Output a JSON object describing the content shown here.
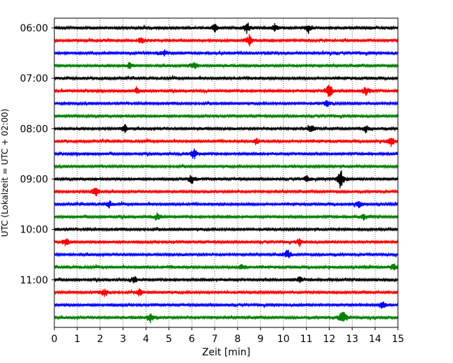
{
  "chart_data": {
    "type": "line",
    "title": "",
    "xlabel": "Zeit  [min]",
    "ylabel": "UTC (Lokalzeit = UTC + 02:00)",
    "xlim": [
      0,
      15
    ],
    "x_ticks": [
      0,
      1,
      2,
      3,
      4,
      5,
      6,
      7,
      8,
      9,
      10,
      11,
      12,
      13,
      14,
      15
    ],
    "y_tick_labels": [
      "06:00",
      "07:00",
      "08:00",
      "09:00",
      "10:00",
      "11:00"
    ],
    "grid": "vertical dotted",
    "row_minutes": 15,
    "trace_colors": [
      "#000000",
      "#ff0000",
      "#0000ff",
      "#008000"
    ],
    "trace_start_times": [
      "06:00",
      "06:15",
      "06:30",
      "06:45",
      "07:00",
      "07:15",
      "07:30",
      "07:45",
      "08:00",
      "08:15",
      "08:30",
      "08:45",
      "09:00",
      "09:15",
      "09:30",
      "09:45",
      "10:00",
      "10:15",
      "10:30",
      "10:45",
      "11:00",
      "11:15",
      "11:30",
      "11:45"
    ],
    "events": [
      {
        "row": 0,
        "x": 7.0,
        "amp": 0.4
      },
      {
        "row": 0,
        "x": 8.4,
        "amp": 0.45
      },
      {
        "row": 0,
        "x": 9.6,
        "amp": 0.4
      },
      {
        "row": 0,
        "x": 11.1,
        "amp": 0.45
      },
      {
        "row": 1,
        "x": 3.8,
        "amp": 0.35
      },
      {
        "row": 1,
        "x": 8.5,
        "amp": 0.55
      },
      {
        "row": 2,
        "x": 4.8,
        "amp": 0.3
      },
      {
        "row": 3,
        "x": 3.3,
        "amp": 0.3
      },
      {
        "row": 3,
        "x": 6.1,
        "amp": 0.3
      },
      {
        "row": 5,
        "x": 12.0,
        "amp": 0.75
      },
      {
        "row": 5,
        "x": 13.6,
        "amp": 0.4
      },
      {
        "row": 5,
        "x": 3.6,
        "amp": 0.3
      },
      {
        "row": 6,
        "x": 11.9,
        "amp": 0.35
      },
      {
        "row": 8,
        "x": 3.1,
        "amp": 0.4
      },
      {
        "row": 8,
        "x": 11.2,
        "amp": 0.4
      },
      {
        "row": 8,
        "x": 13.6,
        "amp": 0.35
      },
      {
        "row": 9,
        "x": 8.8,
        "amp": 0.35
      },
      {
        "row": 9,
        "x": 14.7,
        "amp": 0.45
      },
      {
        "row": 10,
        "x": 6.1,
        "amp": 0.6
      },
      {
        "row": 12,
        "x": 6.0,
        "amp": 0.45
      },
      {
        "row": 12,
        "x": 12.5,
        "amp": 0.95
      },
      {
        "row": 12,
        "x": 11.0,
        "amp": 0.3
      },
      {
        "row": 13,
        "x": 1.8,
        "amp": 0.45
      },
      {
        "row": 14,
        "x": 2.4,
        "amp": 0.3
      },
      {
        "row": 14,
        "x": 13.3,
        "amp": 0.3
      },
      {
        "row": 15,
        "x": 4.5,
        "amp": 0.3
      },
      {
        "row": 15,
        "x": 13.5,
        "amp": 0.3
      },
      {
        "row": 17,
        "x": 0.5,
        "amp": 0.4
      },
      {
        "row": 17,
        "x": 10.7,
        "amp": 0.3
      },
      {
        "row": 18,
        "x": 10.2,
        "amp": 0.45
      },
      {
        "row": 19,
        "x": 8.2,
        "amp": 0.3
      },
      {
        "row": 19,
        "x": 14.8,
        "amp": 0.35
      },
      {
        "row": 20,
        "x": 3.5,
        "amp": 0.3
      },
      {
        "row": 20,
        "x": 10.7,
        "amp": 0.3
      },
      {
        "row": 21,
        "x": 2.2,
        "amp": 0.45
      },
      {
        "row": 21,
        "x": 3.7,
        "amp": 0.35
      },
      {
        "row": 22,
        "x": 14.3,
        "amp": 0.4
      },
      {
        "row": 23,
        "x": 4.2,
        "amp": 0.45
      },
      {
        "row": 23,
        "x": 12.6,
        "amp": 0.75
      }
    ]
  }
}
